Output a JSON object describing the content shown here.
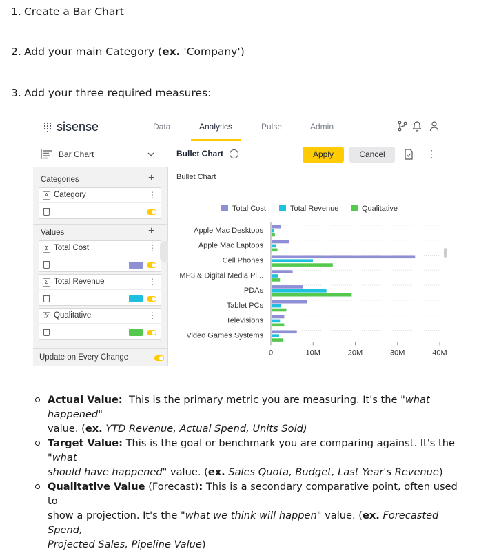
{
  "steps": [
    {
      "num": "1.",
      "text": "Create a Bar Chart"
    },
    {
      "num": "2.",
      "text_before": "Add your main Category (",
      "bold": "ex.",
      "text_after": " 'Company')"
    },
    {
      "num": "3.",
      "text": "Add your three required measures:"
    }
  ],
  "app": {
    "logo": "sisense",
    "nav": [
      "Data",
      "Analytics",
      "Pulse",
      "Admin"
    ],
    "active_nav": "Analytics",
    "accent_color": "#ffcb05"
  },
  "left_panel": {
    "chart_type": "Bar Chart",
    "categories_label": "Categories",
    "category_item": {
      "badge": "A",
      "label": "Category"
    },
    "values_label": "Values",
    "value_items": [
      {
        "badge": "Σ",
        "label": "Total Cost",
        "color": "#8f8fd6"
      },
      {
        "badge": "Σ",
        "label": "Total Revenue",
        "color": "#1fbfe0"
      },
      {
        "badge": "fx",
        "label": "Qualitative",
        "color": "#55c94d"
      }
    ],
    "update_label": "Update on Every Change"
  },
  "right_panel": {
    "widget_title": "Bullet Chart",
    "apply_label": "Apply",
    "cancel_label": "Cancel",
    "chart_heading": "Bullet Chart"
  },
  "chart_data": {
    "type": "bar",
    "orientation": "horizontal",
    "title": "Bullet Chart",
    "categories": [
      "Apple Mac Desktops",
      "Apple Mac Laptops",
      "Cell Phones",
      "MP3 & Digital Media Pl...",
      "PDAs",
      "Tablet PCs",
      "Televisions",
      "Video Games Systems"
    ],
    "series": [
      {
        "name": "Total Cost",
        "color": "#8f8fd6",
        "values": [
          2.2,
          4.2,
          34,
          5,
          7.5,
          8.5,
          3,
          6
        ]
      },
      {
        "name": "Total Revenue",
        "color": "#1fbfe0",
        "values": [
          0.5,
          1,
          9.8,
          1.5,
          13,
          2.2,
          2,
          1.8
        ]
      },
      {
        "name": "Qualitative",
        "color": "#55c94d",
        "values": [
          0.8,
          1.4,
          14.5,
          2,
          19,
          3.5,
          3,
          2.8
        ]
      }
    ],
    "ticks": [
      "0",
      "10M",
      "20M",
      "30M",
      "40M"
    ],
    "xlim": [
      0,
      40
    ],
    "legend": "top",
    "grid": true
  },
  "bullets": [
    {
      "label": "Actual Value:",
      "text1": "  This is the primary metric you are measuring. It's the \"",
      "ital1": "what happened",
      "text2": "\"",
      "line2_a": "value. (",
      "ex": "ex.",
      "line2_ital": " YTD Revenue, Actual Spend, Units Sold)",
      "line2_end": ""
    },
    {
      "label": "Target Value:",
      "text1": " This is the goal or benchmark you are comparing against. It's the \"",
      "ital1": "what",
      "line2_ital_a": "should have happened",
      "line2_b": "\" value. (",
      "ex": "ex.",
      "line2_ital": " Sales Quota, Budget, Last Year's Revenue",
      "line2_end": ")"
    },
    {
      "label": "Qualitative Value",
      "text_plain": " (Forecast)",
      "colon": ":",
      "text1": " This is a secondary comparative point, often used to",
      "line2_a": "show a projection. It's the \"",
      "ital1": "what we think will happen",
      "line2_b": "\" value. (",
      "ex": "ex.",
      "line2_ital": " Forecasted Spend,",
      "line3_ital": "Projected Sales, Pipeline Value",
      "line3_end": ")"
    }
  ]
}
